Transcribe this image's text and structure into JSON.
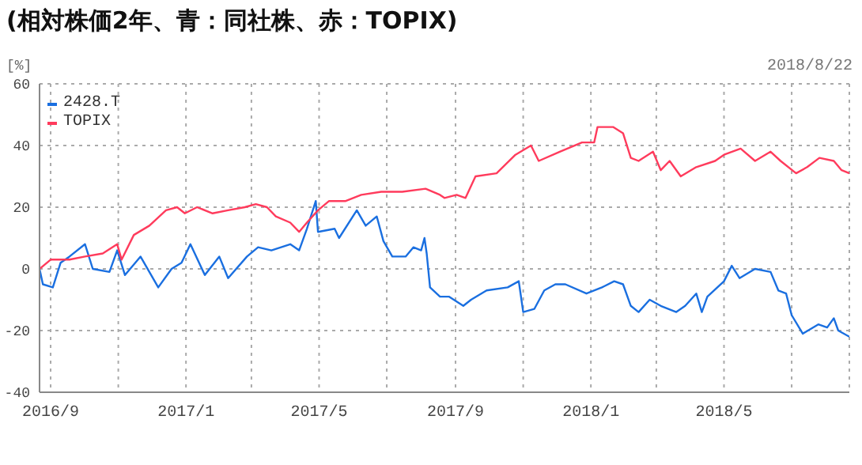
{
  "chart_data": {
    "type": "line",
    "title": "(相対株価2年、青：同社株、赤：TOPIX)",
    "ylabel": "[%]",
    "annotations": [
      "2018/8/22"
    ],
    "xlim": [
      "2016-08-22",
      "2018-08-22"
    ],
    "xticks": [
      {
        "value": "2016-09-01",
        "label": "2016/9"
      },
      {
        "value": "2016-11-01",
        "label": null
      },
      {
        "value": "2017-01-01",
        "label": "2017/1"
      },
      {
        "value": "2017-03-01",
        "label": null
      },
      {
        "value": "2017-05-01",
        "label": "2017/5"
      },
      {
        "value": "2017-07-01",
        "label": null
      },
      {
        "value": "2017-09-01",
        "label": "2017/9"
      },
      {
        "value": "2017-11-01",
        "label": null
      },
      {
        "value": "2018-01-01",
        "label": "2018/1"
      },
      {
        "value": "2018-03-01",
        "label": null
      },
      {
        "value": "2018-05-01",
        "label": "2018/5"
      },
      {
        "value": "2018-07-01",
        "label": null
      }
    ],
    "ylim": [
      -40,
      60
    ],
    "yticks": [
      -40,
      -20,
      0,
      20,
      40,
      60
    ],
    "grid": true,
    "legend": "top left",
    "marker": "none",
    "line_style": "solid",
    "series": [
      {
        "name": "2428.T",
        "color": "#1a6fe0",
        "x": [
          "2016-08-22",
          "2016-08-25",
          "2016-09-03",
          "2016-09-10",
          "2016-09-18",
          "2016-10-02",
          "2016-10-09",
          "2016-10-24",
          "2016-10-31",
          "2016-11-07",
          "2016-11-21",
          "2016-12-07",
          "2016-12-19",
          "2016-12-28",
          "2017-01-05",
          "2017-01-18",
          "2017-01-31",
          "2017-02-08",
          "2017-02-25",
          "2017-03-07",
          "2017-03-19",
          "2017-04-05",
          "2017-04-13",
          "2017-04-20",
          "2017-04-28",
          "2017-04-30",
          "2017-05-15",
          "2017-05-19",
          "2017-06-04",
          "2017-06-12",
          "2017-06-22",
          "2017-06-28",
          "2017-07-06",
          "2017-07-18",
          "2017-07-25",
          "2017-08-01",
          "2017-08-04",
          "2017-08-06",
          "2017-08-09",
          "2017-08-18",
          "2017-08-26",
          "2017-09-08",
          "2017-09-15",
          "2017-09-29",
          "2017-10-18",
          "2017-10-28",
          "2017-11-01",
          "2017-11-11",
          "2017-11-20",
          "2017-11-30",
          "2017-12-09",
          "2017-12-28",
          "2018-01-11",
          "2018-01-22",
          "2018-01-30",
          "2018-02-06",
          "2018-02-13",
          "2018-02-23",
          "2018-03-05",
          "2018-03-19",
          "2018-03-27",
          "2018-04-06",
          "2018-04-11",
          "2018-04-16",
          "2018-05-01",
          "2018-05-08",
          "2018-05-15",
          "2018-05-29",
          "2018-06-12",
          "2018-06-19",
          "2018-06-26",
          "2018-07-01",
          "2018-07-11",
          "2018-07-25",
          "2018-08-02",
          "2018-08-08",
          "2018-08-12",
          "2018-08-22"
        ],
        "values": [
          0,
          -5,
          -6,
          2,
          4,
          8,
          0,
          -1,
          6,
          -2,
          4,
          -6,
          0,
          2,
          8,
          -2,
          4,
          -3,
          4,
          7,
          6,
          8,
          6,
          13,
          22,
          12,
          13,
          10,
          19,
          14,
          17,
          9,
          4,
          4,
          7,
          6,
          10,
          5,
          -6,
          -9,
          -9,
          -12,
          -10,
          -7,
          -6,
          -4,
          -14,
          -13,
          -7,
          -5,
          -5,
          -8,
          -6,
          -4,
          -5,
          -12,
          -14,
          -10,
          -12,
          -14,
          -12,
          -8,
          -14,
          -9,
          -4,
          1,
          -3,
          0,
          -1,
          -7,
          -8,
          -15,
          -21,
          -18,
          -19,
          -16,
          -20,
          -22
        ]
      },
      {
        "name": "TOPIX",
        "color": "#ff3b5c",
        "x": [
          "2016-08-22",
          "2016-09-01",
          "2016-09-18",
          "2016-10-02",
          "2016-10-18",
          "2016-10-31",
          "2016-11-04",
          "2016-11-15",
          "2016-11-29",
          "2016-12-14",
          "2016-12-24",
          "2016-12-31",
          "2017-01-11",
          "2017-01-25",
          "2017-02-08",
          "2017-02-23",
          "2017-03-05",
          "2017-03-15",
          "2017-03-23",
          "2017-04-05",
          "2017-04-13",
          "2017-04-20",
          "2017-04-30",
          "2017-05-10",
          "2017-05-25",
          "2017-06-08",
          "2017-06-26",
          "2017-07-15",
          "2017-08-05",
          "2017-08-18",
          "2017-08-22",
          "2017-09-02",
          "2017-09-10",
          "2017-09-19",
          "2017-10-08",
          "2017-10-25",
          "2017-11-08",
          "2017-11-15",
          "2017-12-04",
          "2017-12-24",
          "2018-01-04",
          "2018-01-07",
          "2018-01-21",
          "2018-01-30",
          "2018-02-06",
          "2018-02-13",
          "2018-02-26",
          "2018-03-05",
          "2018-03-13",
          "2018-03-23",
          "2018-04-06",
          "2018-04-23",
          "2018-05-01",
          "2018-05-16",
          "2018-05-29",
          "2018-06-12",
          "2018-06-21",
          "2018-07-05",
          "2018-07-15",
          "2018-07-26",
          "2018-08-08",
          "2018-08-15",
          "2018-08-22"
        ],
        "values": [
          0,
          3,
          3,
          4,
          5,
          8,
          3,
          11,
          14,
          19,
          20,
          18,
          20,
          18,
          19,
          20,
          21,
          20,
          17,
          15,
          12,
          15,
          19,
          22,
          22,
          24,
          25,
          25,
          26,
          24,
          23,
          24,
          23,
          30,
          31,
          37,
          40,
          35,
          38,
          41,
          41,
          46,
          46,
          44,
          36,
          35,
          38,
          32,
          35,
          30,
          33,
          35,
          37,
          39,
          35,
          38,
          35,
          31,
          33,
          36,
          35,
          32,
          31
        ]
      }
    ]
  }
}
